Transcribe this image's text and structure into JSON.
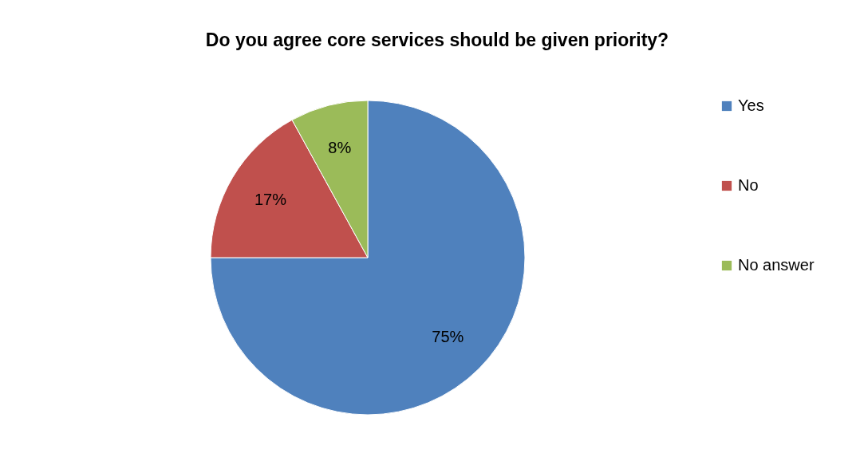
{
  "chart_data": {
    "type": "pie",
    "title": "Do you agree core services should be given priority?",
    "categories": [
      "Yes",
      "No",
      "No answer"
    ],
    "values": [
      75,
      17,
      8
    ],
    "colors": [
      "#4f81bd",
      "#c0504d",
      "#9bbb59"
    ],
    "value_labels": [
      "75%",
      "17%",
      "8%"
    ],
    "legend": "right"
  }
}
